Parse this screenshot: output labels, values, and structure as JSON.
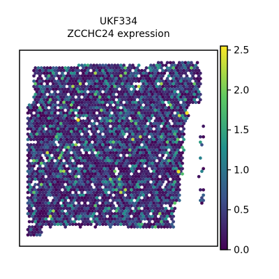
{
  "chart_data": {
    "type": "scatter",
    "subtype": "spatial-transcriptomics-hex-spots",
    "title_line1": "UKF334",
    "title_line2": "ZCCHC24 expression",
    "xlabel": "",
    "ylabel": "",
    "colormap": [
      "#440154",
      "#3b528b",
      "#21918c",
      "#5ec962",
      "#fde725"
    ],
    "colorbar": {
      "vmin": 0.0,
      "vmax": 2.55,
      "ticks": [
        0.0,
        0.5,
        1.0,
        1.5,
        2.0,
        2.5
      ],
      "tick_labels": [
        "0.0",
        "0.5",
        "1.0",
        "1.5",
        "2.0",
        "2.5"
      ]
    },
    "grid": false,
    "notes_free": true
  }
}
